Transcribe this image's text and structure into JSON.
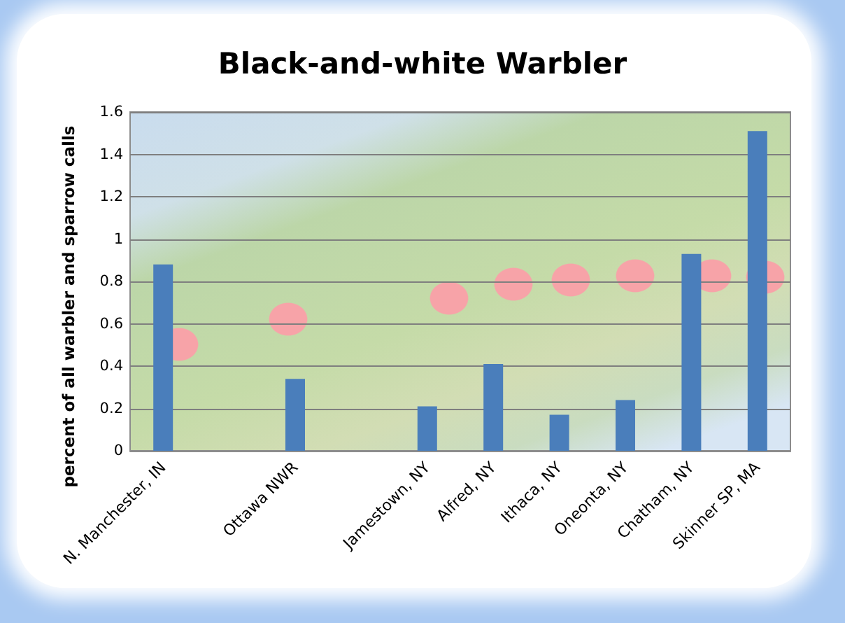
{
  "chart_data": {
    "type": "bar",
    "title": "Black-and-white Warbler",
    "ylabel": "percent of all warbler and sparrow calls",
    "categories": [
      "N. Manchester, IN",
      null,
      "Ottawa NWR",
      null,
      "Jamestown, NY",
      "Alfred, NY",
      "Ithaca, NY",
      "Oneonta, NY",
      "Chatham, NY",
      "Skinner SP, MA"
    ],
    "values": [
      0.88,
      null,
      0.34,
      null,
      0.21,
      0.41,
      0.17,
      0.24,
      0.93,
      1.51
    ],
    "color": "#4a7ebb",
    "ylim": [
      0,
      1.6
    ],
    "yticks": [
      0,
      0.2,
      0.4,
      0.6,
      0.8,
      1,
      1.2,
      1.4,
      1.6
    ],
    "grid": "y"
  }
}
